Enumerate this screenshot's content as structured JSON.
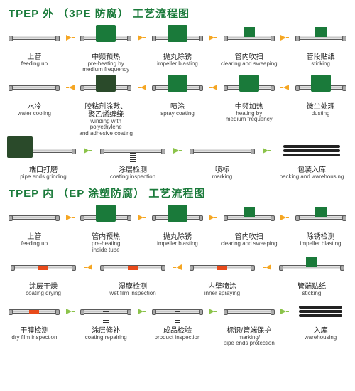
{
  "arrow_colors": {
    "orange": "#f5a623",
    "lime": "#8bc34a"
  },
  "machine_colors": {
    "green": "#1a7a3a",
    "dark": "#2a4a2a"
  },
  "sections": [
    {
      "title_parts": [
        "TPEP 外",
        "（3PE 防腐）",
        "工艺流程图"
      ],
      "title_color": "#1a7a3a",
      "rows": [
        {
          "arrow_dir": "right",
          "arrow_color": "orange",
          "steps": [
            {
              "cn": "上管",
              "en": "feeding up",
              "icon": "pipe"
            },
            {
              "cn": "中频预热",
              "en": "pre-heating by\nmedium frequency",
              "icon": "machine-green"
            },
            {
              "cn": "抛丸除锈",
              "en": "impeller blasting",
              "icon": "machine-green"
            },
            {
              "cn": "管内吹扫",
              "en": "clearing and sweeping",
              "icon": "pipe-box"
            },
            {
              "cn": "管段贴纸",
              "en": "sticking",
              "icon": "pipe-box"
            }
          ]
        },
        {
          "arrow_dir": "left",
          "arrow_color": "orange",
          "steps": [
            {
              "cn": "水冷",
              "en": "water cooling",
              "icon": "pipe"
            },
            {
              "cn": "胶粘剂涂敷、\n聚乙烯缠绕",
              "en": "winding with polyethylene\nand adhesive coating",
              "icon": "machine-dark"
            },
            {
              "cn": "喷涂",
              "en": "spray coating",
              "icon": "machine-green"
            },
            {
              "cn": "中频加热",
              "en": "heating by\nmedium frequency",
              "icon": "machine-green"
            },
            {
              "cn": "微尘处理",
              "en": "dusting",
              "icon": "machine-green"
            }
          ]
        },
        {
          "arrow_dir": "right",
          "arrow_color": "lime",
          "steps": [
            {
              "cn": "端口打磨",
              "en": "pipe ends grinding",
              "icon": "machine-dark-low"
            },
            {
              "cn": "涂层检测",
              "en": "coating inspection",
              "icon": "spring"
            },
            {
              "cn": "喷标",
              "en": "marking",
              "icon": "pipe"
            },
            {
              "cn": "包装入库",
              "en": "packing and warehousing",
              "icon": "black-pipes"
            }
          ]
        }
      ]
    },
    {
      "title_parts": [
        "TPEP 内",
        "（EP 涂塑防腐）",
        "工艺流程图"
      ],
      "title_color": "#1a7a3a",
      "rows": [
        {
          "arrow_dir": "right",
          "arrow_color": "orange",
          "steps": [
            {
              "cn": "上管",
              "en": "feeding up",
              "icon": "pipe"
            },
            {
              "cn": "管内预热",
              "en": "pre-heating\ninside tube",
              "icon": "machine-green"
            },
            {
              "cn": "抛丸除锈",
              "en": "impeller blasting",
              "icon": "machine-green"
            },
            {
              "cn": "管内吹扫",
              "en": "clearing and sweeping",
              "icon": "pipe-box"
            },
            {
              "cn": "除锈检测",
              "en": "impeller blasting",
              "icon": "pipe-box"
            }
          ]
        },
        {
          "arrow_dir": "left",
          "arrow_color": "orange",
          "steps": [
            {
              "cn": "涂层干燥",
              "en": "coating drying",
              "icon": "red-pipe"
            },
            {
              "cn": "湿膜检测",
              "en": "wet film inspection",
              "icon": "red-pipe"
            },
            {
              "cn": "内壁喷涂",
              "en": "inner spraying",
              "icon": "red-pipe"
            },
            {
              "cn": "管端贴纸",
              "en": "sticking",
              "icon": "pipe-box"
            }
          ]
        },
        {
          "arrow_dir": "right",
          "arrow_color": "lime",
          "steps": [
            {
              "cn": "干膜检测",
              "en": "dry film inspection",
              "icon": "red-pipe"
            },
            {
              "cn": "涂层修补",
              "en": "coating repairing",
              "icon": "spring"
            },
            {
              "cn": "成品检验",
              "en": "product inspection",
              "icon": "spring"
            },
            {
              "cn": "标识/管端保护",
              "en": "marking/\npipe ends protection",
              "icon": "pipe"
            },
            {
              "cn": "入库",
              "en": "warehousing",
              "icon": "black-pipes"
            }
          ]
        }
      ]
    }
  ]
}
